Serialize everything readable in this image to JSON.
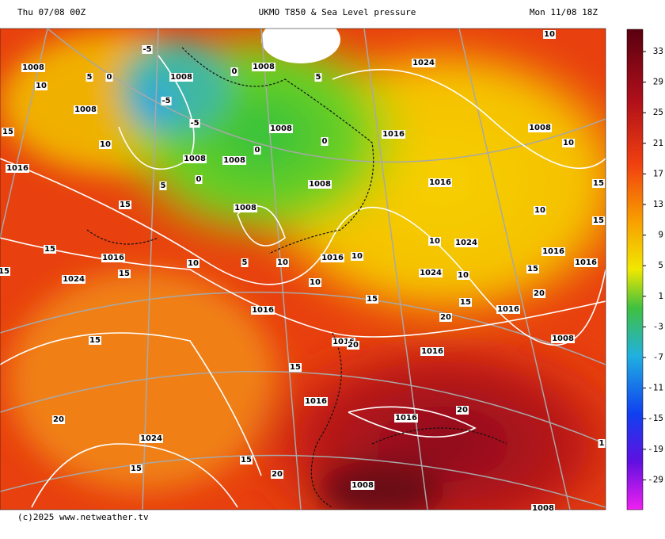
{
  "header": {
    "left": "Thu 07/08 00Z",
    "title": "UKMO T850 & Sea Level pressure",
    "right": "Mon 11/08 18Z"
  },
  "footer": "(c)2025 www.netweather.tv",
  "colorbar": {
    "labels": [
      "33",
      "29",
      "25",
      "21",
      "17",
      "13",
      "9",
      "5",
      "1",
      "-3",
      "-7",
      "-11",
      "-15",
      "-19",
      "-29"
    ]
  },
  "map": {
    "labels": [
      "-5",
      "1008",
      "10",
      "5",
      "0",
      "1008",
      "-5",
      "0",
      "1008",
      "5",
      "1024",
      "10",
      "1008",
      "15",
      "10",
      "-5",
      "1008",
      "1016",
      "1008",
      "10",
      "1008",
      "1008",
      "0",
      "0",
      "1016",
      "5",
      "0",
      "1008",
      "1016",
      "15",
      "15",
      "1008",
      "10",
      "15",
      "15",
      "1016",
      "10",
      "5",
      "10",
      "1016",
      "10",
      "10",
      "1024",
      "1016",
      "1016",
      "15",
      "1024",
      "15",
      "10",
      "1024",
      "10",
      "15",
      "1016",
      "15",
      "15",
      "20",
      "1016",
      "20",
      "15",
      "1016",
      "20",
      "1016",
      "1008",
      "15",
      "1016",
      "1016",
      "20",
      "20",
      "1024",
      "15",
      "15",
      "20",
      "1008",
      "1008",
      "1"
    ]
  }
}
